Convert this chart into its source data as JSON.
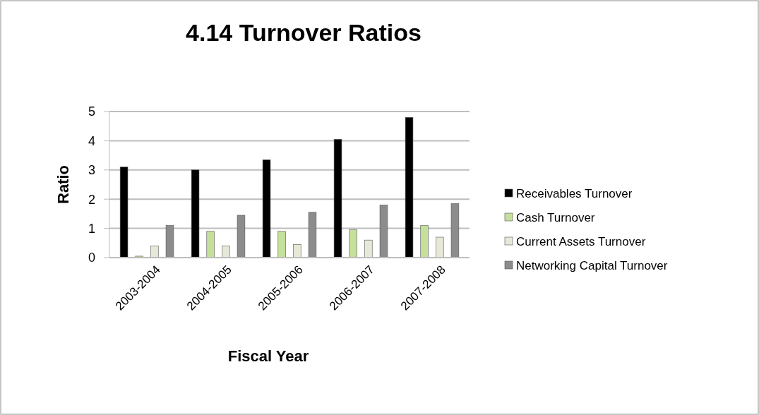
{
  "chart_data": {
    "type": "bar",
    "title": "4.14 Turnover Ratios",
    "xlabel": "Fiscal Year",
    "ylabel": "Ratio",
    "categories": [
      "2003-2004",
      "2004-2005",
      "2005-2006",
      "2006-2007",
      "2007-2008"
    ],
    "series": [
      {
        "name": "Receivables Turnover",
        "color": "#000000",
        "values": [
          3.1,
          3.0,
          3.35,
          4.05,
          4.8
        ]
      },
      {
        "name": "Cash Turnover",
        "color": "#c4e09a",
        "values": [
          0.05,
          0.9,
          0.9,
          0.95,
          1.1
        ]
      },
      {
        "name": "Current Assets Turnover",
        "color": "#e8e8d8",
        "values": [
          0.4,
          0.4,
          0.45,
          0.6,
          0.7
        ]
      },
      {
        "name": "Networking Capital Turnover",
        "color": "#8c8c8c",
        "values": [
          1.1,
          1.45,
          1.55,
          1.8,
          1.85
        ]
      }
    ],
    "ylim": [
      0,
      5
    ],
    "yticks": [
      0,
      1,
      2,
      3,
      4,
      5
    ],
    "grid": "y",
    "legend": "right"
  }
}
